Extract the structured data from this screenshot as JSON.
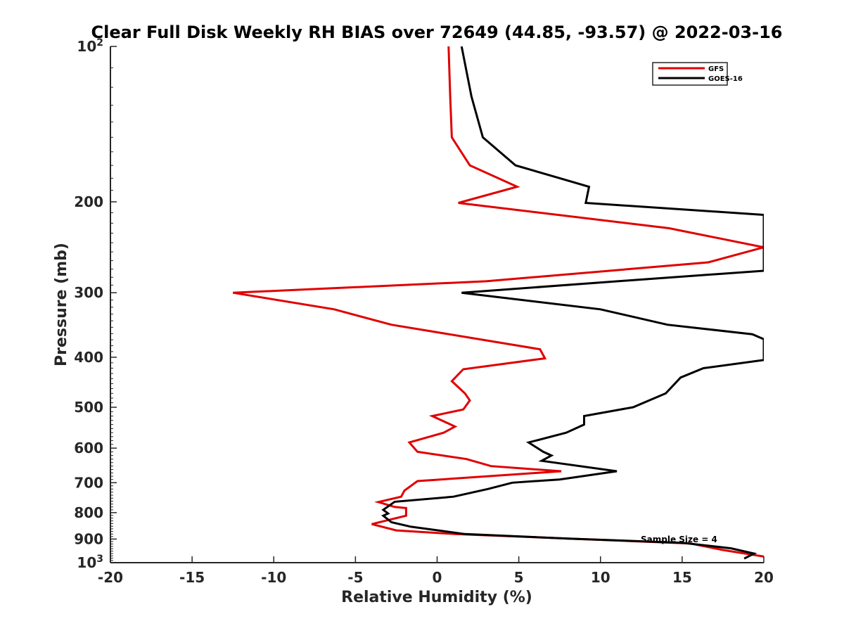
{
  "chart_data": {
    "type": "line",
    "title": "Clear Full Disk Weekly RH BIAS over 72649 (44.85, -93.57) @ 2022-03-16",
    "xlabel": "Relative Humidity (%)",
    "ylabel": "Pressure (mb)",
    "xlim": [
      -20,
      20
    ],
    "ylim": [
      100,
      1000
    ],
    "y_scale": "log",
    "y_reversed": true,
    "grid": false,
    "legend_position": "top-right",
    "x_ticks": [
      "-20",
      "-15",
      "-10",
      "-5",
      "0",
      "5",
      "10",
      "15",
      "20"
    ],
    "y_ticks": [
      {
        "value": 100,
        "base": "10",
        "exp": "2"
      },
      {
        "value": 200,
        "label": "200"
      },
      {
        "value": 300,
        "label": "300"
      },
      {
        "value": 400,
        "label": "400"
      },
      {
        "value": 500,
        "label": "500"
      },
      {
        "value": 600,
        "label": "600"
      },
      {
        "value": 700,
        "label": "700"
      },
      {
        "value": 800,
        "label": "800"
      },
      {
        "value": 900,
        "label": "900"
      },
      {
        "value": 1000,
        "base": "10",
        "exp": "3"
      }
    ],
    "annotation": "Sample Size = 4",
    "series": [
      {
        "name": "GFS",
        "color": "#e00000",
        "points": [
          [
            0.7,
            100
          ],
          [
            0.8,
            125
          ],
          [
            0.9,
            150
          ],
          [
            2.0,
            170
          ],
          [
            4.9,
            187
          ],
          [
            1.3,
            201
          ],
          [
            14.2,
            225
          ],
          [
            20.0,
            245
          ],
          [
            16.6,
            262
          ],
          [
            3.0,
            285
          ],
          [
            -12.5,
            300
          ],
          [
            -6.3,
            323
          ],
          [
            -2.8,
            346
          ],
          [
            6.3,
            386
          ],
          [
            6.6,
            402
          ],
          [
            1.6,
            422
          ],
          [
            0.9,
            445
          ],
          [
            1.7,
            470
          ],
          [
            2.0,
            485
          ],
          [
            1.6,
            505
          ],
          [
            -0.3,
            520
          ],
          [
            1.1,
            545
          ],
          [
            0.4,
            560
          ],
          [
            -1.7,
            585
          ],
          [
            -1.2,
            610
          ],
          [
            1.8,
            630
          ],
          [
            3.3,
            650
          ],
          [
            7.6,
            665
          ],
          [
            -1.2,
            695
          ],
          [
            -2.0,
            725
          ],
          [
            -2.2,
            745
          ],
          [
            -3.6,
            763
          ],
          [
            -2.6,
            780
          ],
          [
            -1.9,
            784
          ],
          [
            -1.9,
            811
          ],
          [
            -4.0,
            842
          ],
          [
            -2.5,
            866
          ],
          [
            1.1,
            880
          ],
          [
            8.0,
            898
          ],
          [
            15.5,
            918
          ],
          [
            17.5,
            945
          ],
          [
            20.0,
            973
          ]
        ]
      },
      {
        "name": "GOES-16",
        "color": "#000000",
        "points": [
          [
            1.5,
            100
          ],
          [
            2.1,
            125
          ],
          [
            2.8,
            150
          ],
          [
            4.8,
            170
          ],
          [
            9.3,
            187
          ],
          [
            9.1,
            201
          ],
          [
            20.0,
            212
          ],
          [
            20.0,
            272
          ],
          [
            12.4,
            283
          ],
          [
            1.5,
            300
          ],
          [
            10.0,
            323
          ],
          [
            14.1,
            346
          ],
          [
            19.3,
            361
          ],
          [
            20.0,
            369
          ],
          [
            20.0,
            405
          ],
          [
            16.3,
            420
          ],
          [
            14.9,
            438
          ],
          [
            14.7,
            445
          ],
          [
            14.0,
            470
          ],
          [
            12.0,
            500
          ],
          [
            9.0,
            520
          ],
          [
            9.0,
            540
          ],
          [
            7.9,
            560
          ],
          [
            5.6,
            585
          ],
          [
            6.5,
            610
          ],
          [
            7.0,
            620
          ],
          [
            6.4,
            635
          ],
          [
            11.0,
            665
          ],
          [
            7.5,
            690
          ],
          [
            4.6,
            700
          ],
          [
            3.1,
            720
          ],
          [
            1.0,
            745
          ],
          [
            -2.6,
            762
          ],
          [
            -3.3,
            790
          ],
          [
            -3.0,
            803
          ],
          [
            -3.3,
            811
          ],
          [
            -2.8,
            835
          ],
          [
            -1.6,
            852
          ],
          [
            1.7,
            880
          ],
          [
            8.0,
            898
          ],
          [
            15.0,
            915
          ],
          [
            18.0,
            938
          ],
          [
            19.4,
            960
          ],
          [
            18.8,
            982
          ]
        ]
      }
    ]
  }
}
